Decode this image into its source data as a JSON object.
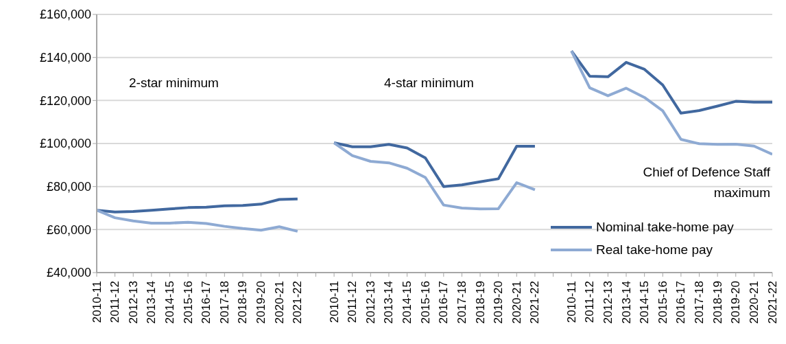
{
  "chart_data": {
    "type": "line",
    "categories": [
      "2010-11",
      "2011-12",
      "2012-13",
      "2013-14",
      "2014-15",
      "2015-16",
      "2016-17",
      "2017-18",
      "2018-19",
      "2019-20",
      "2020-21",
      "2021-22",
      null,
      "2010-11",
      "2011-12",
      "2012-13",
      "2013-14",
      "2014-15",
      "2015-16",
      "2016-17",
      "2017-18",
      "2018-19",
      "2019-20",
      "2020-21",
      "2021-22",
      null,
      "2010-11",
      "2011-12",
      "2012-13",
      "2013-14",
      "2014-15",
      "2015-16",
      "2016-17",
      "2017-18",
      "2018-19",
      "2019-20",
      "2020-21",
      "2021-22"
    ],
    "series": [
      {
        "name": "Nominal take-home pay",
        "color": "#41689f",
        "values": [
          69000,
          68200,
          68400,
          69000,
          69600,
          70200,
          70400,
          71000,
          71200,
          71800,
          74000,
          74200,
          null,
          100300,
          98500,
          98500,
          99600,
          97900,
          93300,
          80000,
          80800,
          82200,
          83600,
          98700,
          98700,
          null,
          143000,
          131300,
          131000,
          137700,
          134500,
          127200,
          114100,
          115300,
          117400,
          119600,
          119200,
          119200
        ]
      },
      {
        "name": "Real take-home pay",
        "color": "#8eaad3",
        "values": [
          69000,
          65500,
          64000,
          63000,
          63000,
          63400,
          62800,
          61500,
          60500,
          59700,
          61300,
          59200,
          null,
          100300,
          94400,
          91700,
          91000,
          88500,
          84200,
          71400,
          70000,
          69600,
          69700,
          81800,
          78500,
          null,
          143000,
          125900,
          122200,
          125700,
          121400,
          115200,
          101900,
          99900,
          99600,
          99700,
          98800,
          95000
        ]
      }
    ],
    "ylim": [
      40000,
      160000
    ],
    "yticks": [
      {
        "value": 40000,
        "label": "£40,000"
      },
      {
        "value": 60000,
        "label": "£60,000"
      },
      {
        "value": 80000,
        "label": "£80,000"
      },
      {
        "value": 100000,
        "label": "£100,000"
      },
      {
        "value": 120000,
        "label": "£120,000"
      },
      {
        "value": 140000,
        "label": "£140,000"
      },
      {
        "value": 160000,
        "label": "£160,000"
      }
    ],
    "grid": "y",
    "legend": "bottom right",
    "marker": "none",
    "line_style": "solid",
    "annotations": [
      "2-star minimum",
      "4-star minimum",
      "Chief of Defence Staff maximum"
    ]
  }
}
